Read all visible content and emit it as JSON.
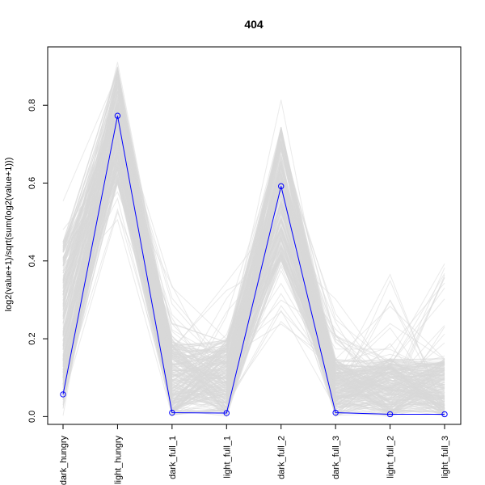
{
  "chart_data": {
    "type": "line",
    "title": "404",
    "xlabel": "",
    "ylabel": "log2(value+1)/sqrt(sum(log2(value+1)))",
    "categories": [
      "dark_hungry",
      "light_hungry",
      "dark_full_1",
      "light_full_1",
      "dark_full_2",
      "dark_full_3",
      "light_full_2",
      "light_full_3"
    ],
    "ylim": [
      -0.02,
      0.95
    ],
    "yticks": [
      0.0,
      0.2,
      0.4,
      0.6,
      0.8
    ],
    "ytick_labels": [
      "0.0",
      "0.2",
      "0.4",
      "0.6",
      "0.8"
    ],
    "grid": false,
    "legend": "none",
    "background_series_color": "#d9d9d9",
    "highlight_series_color": "#0000ff",
    "highlight": {
      "values": [
        0.057,
        0.773,
        0.01,
        0.009,
        0.592,
        0.01,
        0.006,
        0.006
      ]
    },
    "background_ranges": {
      "min": [
        0.0,
        0.5,
        0.0,
        0.0,
        0.22,
        0.0,
        0.0,
        0.0
      ],
      "max": [
        0.56,
        0.92,
        0.36,
        0.38,
        0.83,
        0.33,
        0.38,
        0.4
      ],
      "typical_low": [
        0.02,
        0.6,
        0.0,
        0.0,
        0.4,
        0.0,
        0.0,
        0.0
      ],
      "typical_high": [
        0.45,
        0.9,
        0.2,
        0.2,
        0.75,
        0.15,
        0.15,
        0.15
      ]
    }
  }
}
